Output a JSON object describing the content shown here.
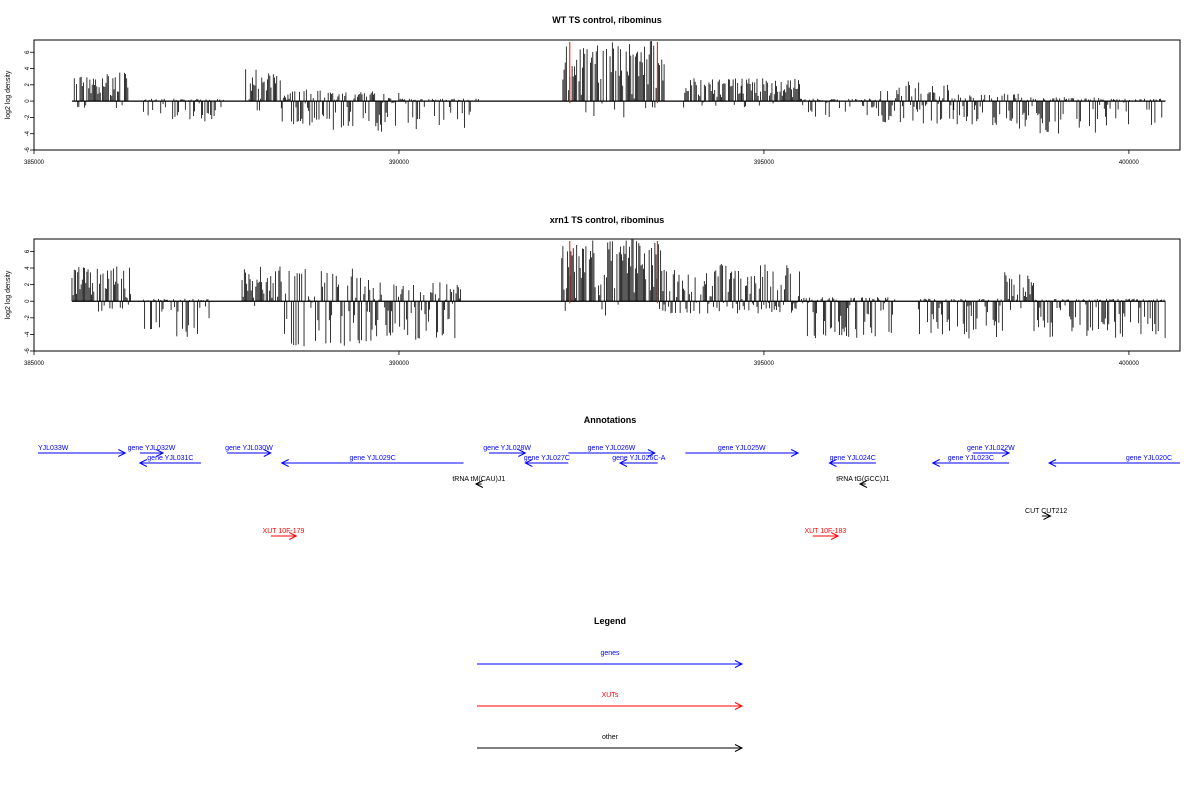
{
  "colors": {
    "gene": "#0000ff",
    "xut": "#ff0000",
    "other": "#000000",
    "marker": "#ff0000",
    "bars": "#000000"
  },
  "chart_data": [
    {
      "type": "bar",
      "title": "WT TS control, ribominus",
      "ylabel": "log2 log density",
      "xlabel": "",
      "xlim": [
        385000,
        400700
      ],
      "ylim": [
        -6,
        7.5
      ],
      "xticks": [
        385000,
        390000,
        395000,
        400000
      ],
      "yticks": [
        -6,
        -4,
        -2,
        0,
        2,
        4,
        6
      ],
      "grid": false,
      "marker_lines": [
        392340,
        393540
      ],
      "density": [
        {
          "x": [
            385520,
            385750
          ],
          "y": [
            -0.2,
            3.0
          ]
        },
        {
          "x": [
            385750,
            386300
          ],
          "y": [
            -0.5,
            3.5
          ]
        },
        {
          "x": [
            386500,
            386800
          ],
          "y": [
            -2.5,
            0.3
          ]
        },
        {
          "x": [
            386900,
            387600
          ],
          "y": [
            -2.5,
            0.3
          ]
        },
        {
          "x": [
            387900,
            388400
          ],
          "y": [
            -0.3,
            4.0
          ]
        },
        {
          "x": [
            388400,
            389100
          ],
          "y": [
            -3.0,
            1.5
          ]
        },
        {
          "x": [
            389100,
            390000
          ],
          "y": [
            -3.8,
            1.2
          ]
        },
        {
          "x": [
            390000,
            391100
          ],
          "y": [
            -4.5,
            0.3
          ]
        },
        {
          "x": [
            392230,
            393640
          ],
          "y": [
            -0.8,
            7.5
          ]
        },
        {
          "x": [
            393900,
            394700
          ],
          "y": [
            -0.2,
            2.8
          ]
        },
        {
          "x": [
            394700,
            395500
          ],
          "y": [
            -0.3,
            2.8
          ]
        },
        {
          "x": [
            395500,
            396600
          ],
          "y": [
            -2.0,
            0.3
          ]
        },
        {
          "x": [
            396600,
            397600
          ],
          "y": [
            -2.8,
            2.5
          ]
        },
        {
          "x": [
            397600,
            398500
          ],
          "y": [
            -3.0,
            1.0
          ]
        },
        {
          "x": [
            398500,
            399600
          ],
          "y": [
            -4.2,
            0.5
          ]
        },
        {
          "x": [
            399600,
            400500
          ],
          "y": [
            -3.0,
            0.3
          ]
        }
      ]
    },
    {
      "type": "bar",
      "title": "xrn1 TS control, ribominus",
      "ylabel": "log2 log density",
      "xlabel": "",
      "xlim": [
        385000,
        400700
      ],
      "ylim": [
        -6,
        7.5
      ],
      "xticks": [
        385000,
        390000,
        395000,
        400000
      ],
      "yticks": [
        -6,
        -4,
        -2,
        0,
        2,
        4,
        6
      ],
      "grid": false,
      "marker_lines": [
        392340,
        393540
      ],
      "density": [
        {
          "x": [
            385520,
            386330
          ],
          "y": [
            -0.3,
            4.2
          ]
        },
        {
          "x": [
            386500,
            387400
          ],
          "y": [
            -4.5,
            0.3
          ]
        },
        {
          "x": [
            387850,
            388400
          ],
          "y": [
            -0.3,
            4.5
          ]
        },
        {
          "x": [
            388400,
            389600
          ],
          "y": [
            -5.5,
            4.0
          ]
        },
        {
          "x": [
            389600,
            390850
          ],
          "y": [
            -5.0,
            2.5
          ]
        },
        {
          "x": [
            392230,
            393640
          ],
          "y": [
            -0.8,
            7.5
          ]
        },
        {
          "x": [
            393600,
            394400
          ],
          "y": [
            -1.5,
            3.8
          ]
        },
        {
          "x": [
            394400,
            395500
          ],
          "y": [
            -1.5,
            4.5
          ]
        },
        {
          "x": [
            395500,
            396800
          ],
          "y": [
            -4.5,
            0.5
          ]
        },
        {
          "x": [
            397100,
            398300
          ],
          "y": [
            -4.5,
            0.3
          ]
        },
        {
          "x": [
            398300,
            398700
          ],
          "y": [
            -0.3,
            3.5
          ]
        },
        {
          "x": [
            398700,
            400500
          ],
          "y": [
            -4.5,
            0.3
          ]
        }
      ]
    }
  ],
  "annotations": {
    "title": "Annotations",
    "xlim": [
      385000,
      400700
    ],
    "items": [
      {
        "label": "YJL033W",
        "kind": "gene",
        "lane": 0,
        "start": 385000,
        "end": 386200,
        "dir": "right"
      },
      {
        "label": "gene YJL032W",
        "kind": "gene",
        "lane": 0,
        "start": 386400,
        "end": 386720,
        "dir": "right"
      },
      {
        "label": "gene YJL031C",
        "kind": "gene",
        "lane": 1,
        "start": 386400,
        "end": 387240,
        "dir": "left"
      },
      {
        "label": "gene YJL030W",
        "kind": "gene",
        "lane": 0,
        "start": 387600,
        "end": 388200,
        "dir": "right"
      },
      {
        "label": "gene YJL029C",
        "kind": "gene",
        "lane": 1,
        "start": 388350,
        "end": 390850,
        "dir": "left"
      },
      {
        "label": "gene YJL028W",
        "kind": "gene",
        "lane": 0,
        "start": 391200,
        "end": 391700,
        "dir": "right"
      },
      {
        "label": "gene YJL027C",
        "kind": "gene",
        "lane": 1,
        "start": 391700,
        "end": 392290,
        "dir": "left"
      },
      {
        "label": "gene YJL026W",
        "kind": "gene",
        "lane": 0,
        "start": 392290,
        "end": 393480,
        "dir": "right"
      },
      {
        "label": "gene YJL026C-A",
        "kind": "gene",
        "lane": 1,
        "start": 393000,
        "end": 393520,
        "dir": "left"
      },
      {
        "label": "tRNA tM(CAU)J1",
        "kind": "other",
        "lane": 2,
        "start": 391020,
        "end": 391100,
        "dir": "left"
      },
      {
        "label": "gene YJL025W",
        "kind": "gene",
        "lane": 0,
        "start": 393900,
        "end": 395450,
        "dir": "right"
      },
      {
        "label": "gene YJL024C",
        "kind": "gene",
        "lane": 1,
        "start": 395880,
        "end": 396520,
        "dir": "left"
      },
      {
        "label": "tRNA tG(GCC)J1",
        "kind": "other",
        "lane": 2,
        "start": 396300,
        "end": 396380,
        "dir": "left"
      },
      {
        "label": "gene YJL023C",
        "kind": "gene",
        "lane": 1,
        "start": 397300,
        "end": 398350,
        "dir": "left"
      },
      {
        "label": "gene YJL022W",
        "kind": "gene",
        "lane": 0,
        "start": 397850,
        "end": 398350,
        "dir": "right"
      },
      {
        "label": "gene YJL020C",
        "kind": "gene",
        "lane": 1,
        "start": 398900,
        "end": 400700,
        "dir": "left"
      },
      {
        "label": "CUT CUT212",
        "kind": "other",
        "lane": 3,
        "start": 398800,
        "end": 398920,
        "dir": "right"
      },
      {
        "label": "XUT 10F-179",
        "kind": "xut",
        "lane": 4,
        "start": 388200,
        "end": 388550,
        "dir": "right"
      },
      {
        "label": "XUT 10F-183",
        "kind": "xut",
        "lane": 4,
        "start": 395650,
        "end": 396000,
        "dir": "right"
      }
    ]
  },
  "legend": {
    "title": "Legend",
    "entries": [
      {
        "label": "genes",
        "kind": "gene"
      },
      {
        "label": "XUTs",
        "kind": "xut"
      },
      {
        "label": "other",
        "kind": "other"
      }
    ]
  }
}
